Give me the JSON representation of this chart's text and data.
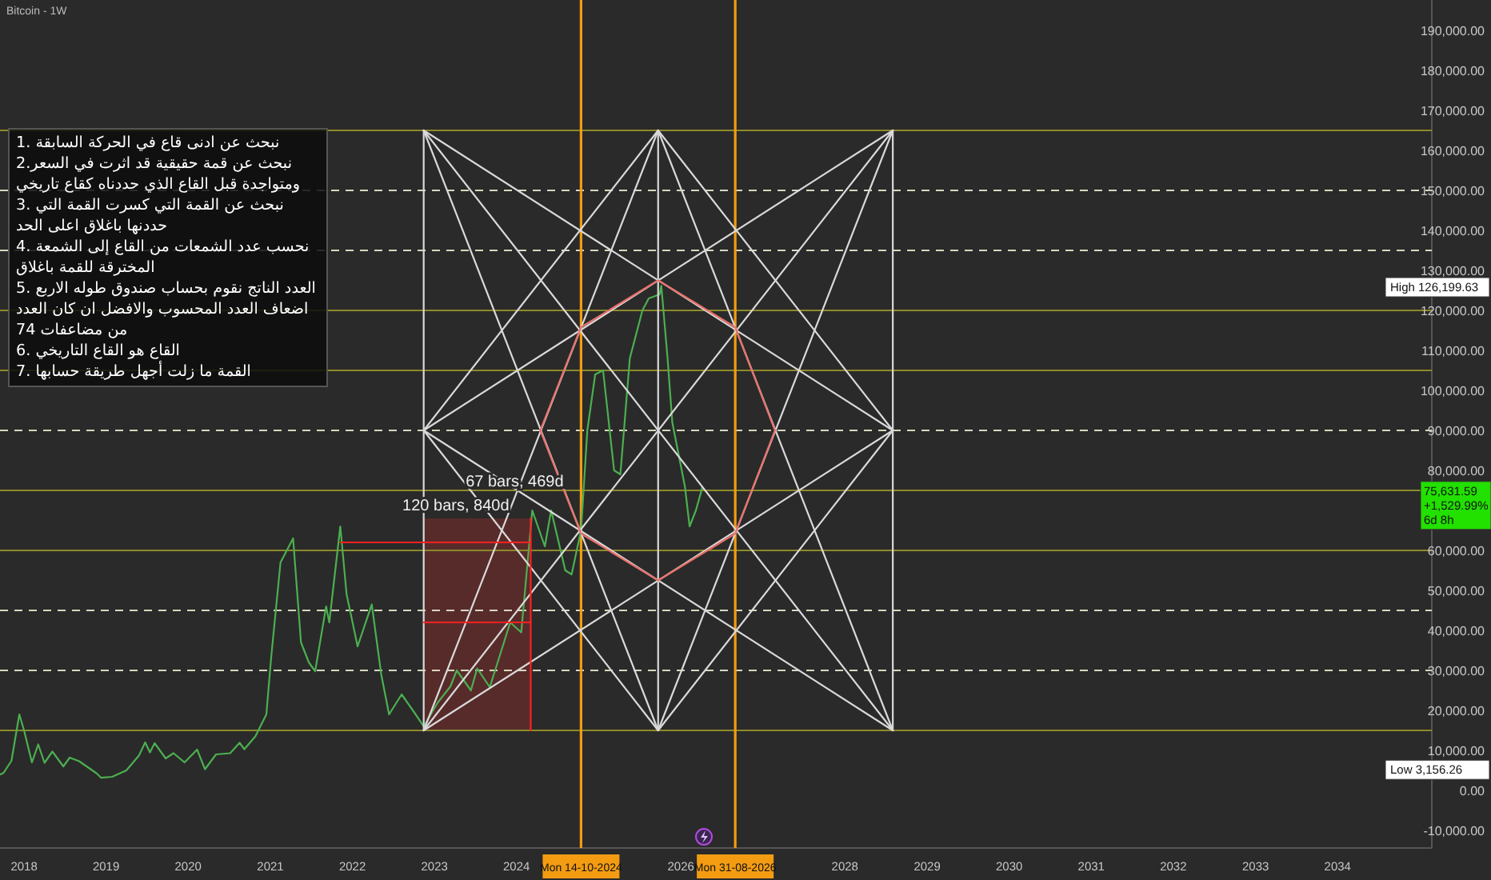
{
  "chart_data": {
    "type": "line",
    "title": "Bitcoin - 1W",
    "xlim": [
      "2017-09-16",
      "2035-02-24"
    ],
    "ylim": [
      -14400,
      197600
    ],
    "xticks": [
      "2018",
      "2019",
      "2020",
      "2021",
      "2022",
      "2023",
      "2024",
      "2026",
      "2028",
      "2029",
      "2030",
      "2031",
      "2032",
      "2033",
      "2034"
    ],
    "yticks": [
      {
        "value": -10000,
        "label": "-10,000.00"
      },
      {
        "value": 0,
        "label": "0.00"
      },
      {
        "value": 10000,
        "label": "10,000.00"
      },
      {
        "value": 20000,
        "label": "20,000.00"
      },
      {
        "value": 30000,
        "label": "30,000.00"
      },
      {
        "value": 40000,
        "label": "40,000.00"
      },
      {
        "value": 50000,
        "label": "50,000.00"
      },
      {
        "value": 60000,
        "label": "60,000.00"
      },
      {
        "value": 80000,
        "label": "80,000.00"
      },
      {
        "value": 90000,
        "label": "90,000.00"
      },
      {
        "value": 100000,
        "label": "100,000.00"
      },
      {
        "value": 110000,
        "label": "110,000.00"
      },
      {
        "value": 120000,
        "label": "120,000.00"
      },
      {
        "value": 130000,
        "label": "130,000.00"
      },
      {
        "value": 140000,
        "label": "140,000.00"
      },
      {
        "value": 150000,
        "label": "150,000.00"
      },
      {
        "value": 160000,
        "label": "160,000.00"
      },
      {
        "value": 170000,
        "label": "170,000.00"
      },
      {
        "value": 180000,
        "label": "180,000.00"
      },
      {
        "value": 190000,
        "label": "190,000.00"
      }
    ],
    "series": [
      {
        "color": "#4caf50",
        "x": [
          "2017-09-18",
          "2017-10-02",
          "2017-11-06",
          "2017-12-11",
          "2018-01-01",
          "2018-02-05",
          "2018-03-05",
          "2018-04-02",
          "2018-05-07",
          "2018-06-25",
          "2018-07-23",
          "2018-09-03",
          "2018-11-19",
          "2018-12-10",
          "2019-01-28",
          "2019-04-01",
          "2019-05-27",
          "2019-06-24",
          "2019-07-15",
          "2019-08-05",
          "2019-09-23",
          "2019-10-28",
          "2019-12-16",
          "2020-02-10",
          "2020-03-16",
          "2020-05-04",
          "2020-07-06",
          "2020-08-17",
          "2020-09-07",
          "2020-10-26",
          "2020-12-14",
          "2021-01-04",
          "2021-02-15",
          "2021-04-12",
          "2021-05-17",
          "2021-06-21",
          "2021-07-19",
          "2021-09-06",
          "2021-09-20",
          "2021-11-08",
          "2021-12-06",
          "2022-01-24",
          "2022-03-28",
          "2022-05-09",
          "2022-06-13",
          "2022-08-08",
          "2022-10-03",
          "2022-11-14",
          "2023-01-16",
          "2023-03-13",
          "2023-04-10",
          "2023-06-12",
          "2023-07-10",
          "2023-09-04",
          "2023-10-23",
          "2023-12-04",
          "2024-01-22",
          "2024-03-11",
          "2024-05-06",
          "2024-06-03",
          "2024-08-05",
          "2024-09-02",
          "2024-10-14",
          "2024-11-11",
          "2024-12-16",
          "2025-01-20",
          "2025-03-10",
          "2025-04-07",
          "2025-05-19",
          "2025-07-14",
          "2025-08-11",
          "2025-09-29",
          "2025-10-06",
          "2025-11-03",
          "2025-11-24",
          "2026-01-19",
          "2026-02-09",
          "2026-03-09",
          "2026-04-06"
        ],
        "values": [
          4000,
          4400,
          7400,
          19000,
          15000,
          7000,
          11500,
          6900,
          9700,
          6000,
          8200,
          7300,
          4300,
          3156.26,
          3400,
          5000,
          8700,
          12000,
          9500,
          11800,
          8000,
          9300,
          7000,
          10200,
          5300,
          9000,
          9300,
          11900,
          10300,
          13500,
          19000,
          33000,
          57000,
          63000,
          37000,
          32000,
          29800,
          46000,
          42000,
          66000,
          49000,
          36000,
          46500,
          29000,
          19000,
          24000,
          19500,
          16000,
          22000,
          26000,
          30000,
          25000,
          30500,
          25800,
          34500,
          42000,
          39500,
          70000,
          61000,
          70000,
          55000,
          54000,
          65000,
          90000,
          104000,
          105000,
          80000,
          79000,
          108000,
          120000,
          123000,
          124000,
          126199.63,
          108000,
          92000,
          76000,
          66000,
          70000,
          75631.59
        ]
      },
      {
        "color": "#d9d9d9",
        "x": [
          "2022-11-14",
          "2022-11-14"
        ],
        "values": [
          15000,
          165000
        ]
      },
      {
        "color": "#d9d9d9",
        "x": [
          "2025-09-22",
          "2025-09-22"
        ],
        "values": [
          15000,
          165000
        ]
      },
      {
        "color": "#d9d9d9",
        "x": [
          "2028-08-01",
          "2028-08-01"
        ],
        "values": [
          15000,
          165000
        ]
      },
      {
        "color": "#d9d9d9",
        "x": [
          "2022-11-14",
          "2025-09-22"
        ],
        "values": [
          165000,
          15000
        ]
      },
      {
        "color": "#d9d9d9",
        "x": [
          "2022-11-14",
          "2028-08-01"
        ],
        "values": [
          165000,
          90000
        ]
      },
      {
        "color": "#d9d9d9",
        "x": [
          "2022-11-14",
          "2028-08-01"
        ],
        "values": [
          165000,
          15000
        ]
      },
      {
        "color": "#d9d9d9",
        "x": [
          "2025-09-22",
          "2028-08-01"
        ],
        "values": [
          15000,
          165000
        ]
      },
      {
        "color": "#d9d9d9",
        "x": [
          "2022-11-14",
          "2028-08-01"
        ],
        "values": [
          90000,
          165000
        ]
      },
      {
        "color": "#d9d9d9",
        "x": [
          "2022-11-14",
          "2028-08-01"
        ],
        "values": [
          15000,
          165000
        ]
      },
      {
        "color": "#d9d9d9",
        "x": [
          "2022-11-14",
          "2025-09-22"
        ],
        "values": [
          15000,
          165000
        ]
      },
      {
        "color": "#d9d9d9",
        "x": [
          "2022-11-14",
          "2028-08-01"
        ],
        "values": [
          15000,
          90000
        ]
      },
      {
        "color": "#d9d9d9",
        "x": [
          "2025-09-22",
          "2028-08-01"
        ],
        "values": [
          165000,
          15000
        ]
      },
      {
        "color": "#d9d9d9",
        "x": [
          "2022-11-14",
          "2028-08-01"
        ],
        "values": [
          90000,
          15000
        ]
      },
      {
        "color": "#d9d9d9",
        "x": [
          "2022-11-14",
          "2025-09-22"
        ],
        "values": [
          90000,
          165000
        ]
      },
      {
        "color": "#d9d9d9",
        "x": [
          "2025-09-22",
          "2028-08-01"
        ],
        "values": [
          165000,
          90000
        ]
      },
      {
        "color": "#d9d9d9",
        "x": [
          "2022-11-14",
          "2025-09-22"
        ],
        "values": [
          90000,
          15000
        ]
      },
      {
        "color": "#d9d9d9",
        "x": [
          "2025-09-22",
          "2028-08-01"
        ],
        "values": [
          15000,
          90000
        ]
      },
      {
        "color": "#e8706a",
        "x": [
          "2024-04-16",
          "2024-10-14",
          "2025-09-22",
          "2026-08-31",
          "2027-02-24"
        ],
        "values": [
          90000,
          115800,
          127500,
          115800,
          90000
        ]
      },
      {
        "color": "#e8706a",
        "x": [
          "2024-04-16",
          "2024-10-14",
          "2025-09-22",
          "2026-08-31",
          "2027-02-24"
        ],
        "values": [
          90000,
          64200,
          52500,
          64200,
          90000
        ]
      },
      {
        "color": "#ff2020",
        "x": [
          "2021-11-08",
          "2024-03-04"
        ],
        "values": [
          62000,
          62000
        ]
      },
      {
        "color": "#ff2020",
        "x": [
          "2022-11-14",
          "2024-03-04"
        ],
        "values": [
          42000,
          42000
        ]
      },
      {
        "color": "#ff2020",
        "x": [
          "2024-03-04",
          "2024-03-04"
        ],
        "values": [
          15000,
          68000
        ]
      }
    ],
    "ref_lines": [
      {
        "axis": "y",
        "value": 15000,
        "color": "#8c8a2a",
        "line_style": "solid"
      },
      {
        "axis": "y",
        "value": 30000,
        "color": "#d8d8c0",
        "line_style": "dashed"
      },
      {
        "axis": "y",
        "value": 45000,
        "color": "#d8d8c0",
        "line_style": "dashed"
      },
      {
        "axis": "y",
        "value": 60000,
        "color": "#8c8a2a",
        "line_style": "solid"
      },
      {
        "axis": "y",
        "value": 75000,
        "color": "#8c8a2a",
        "line_style": "solid"
      },
      {
        "axis": "y",
        "value": 90000,
        "color": "#d8d8c0",
        "line_style": "dashed"
      },
      {
        "axis": "y",
        "value": 105000,
        "color": "#8c8a2a",
        "line_style": "solid"
      },
      {
        "axis": "y",
        "value": 120000,
        "color": "#8c8a2a",
        "line_style": "solid"
      },
      {
        "axis": "y",
        "value": 135000,
        "color": "#d8d8c0",
        "line_style": "dashed"
      },
      {
        "axis": "y",
        "value": 150000,
        "color": "#d8d8c0",
        "line_style": "dashed"
      },
      {
        "axis": "y",
        "value": 165000,
        "color": "#8c8a2a",
        "line_style": "solid"
      },
      {
        "axis": "x",
        "value": "2024-10-14",
        "label": "Mon 14-10-2024",
        "color": "#f39c12",
        "line_style": "solid"
      },
      {
        "axis": "x",
        "value": "2026-08-31",
        "label": "Mon 31-08-2026",
        "color": "#f39c12",
        "line_style": "solid"
      }
    ],
    "annotations": [
      "1. نبحث عن ادنى قاع في الحركة السابقة",
      "2.نبحث عن قمة حقيقية قد اثرت في السعر ومتواجدة قبل القاع الذي حددناه كقاع تاريخي",
      "3. نبحث عن القمة التي كسرت القمة التي حددنها باغلاق اعلى الحد",
      "4. نحسب عدد الشمعات من القاع إلى الشمعة المخترقة للقمة باغلاق",
      "5. العدد الناتج نقوم بحساب صندوق طوله الاربع اضعاف العدد المحسوب والافضل ان كان العدد من مضاعفات 74",
      "6. القاع هو القاع التاريخي",
      "7. القمة ما زلت أجهل طريقة حسابها",
      "120 bars, 840d",
      "67 bars, 469d",
      "High 126,199.63",
      "Low 3,156.26",
      "75,631.59\n+1,529.99%\n6d 8h"
    ]
  }
}
